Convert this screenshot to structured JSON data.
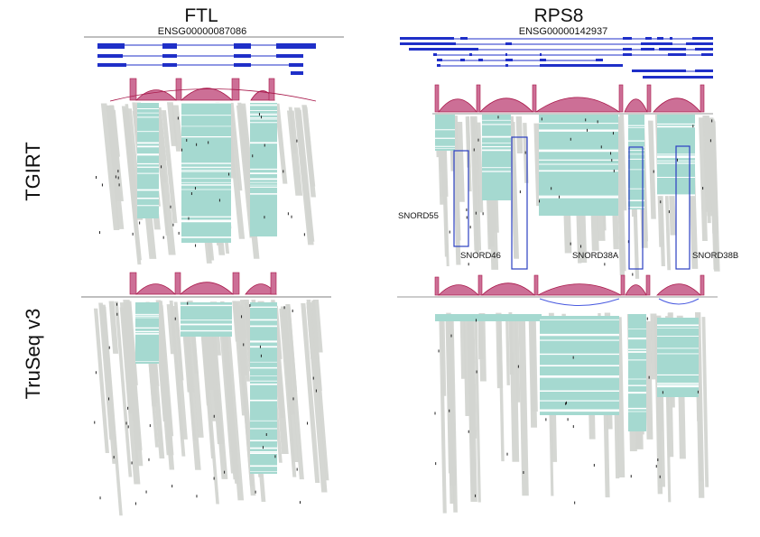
{
  "genes": [
    {
      "name": "FTL",
      "id": "ENSG00000087086"
    },
    {
      "name": "RPS8",
      "id": "ENSG00000142937"
    }
  ],
  "rows": [
    "TGIRT",
    "TruSeq v3"
  ],
  "snornas": [
    "SNORD55",
    "SNORD46",
    "SNORD38A",
    "SNORD38B"
  ],
  "colors": {
    "transcript": "#1f2fc8",
    "sashimi_arc": "#a8184a",
    "sashimi_fill": "#cc6f96",
    "exon_reads": "#a5d9d0",
    "intron_reads": "#d3d5d1",
    "snorna_box": "#2b3fc2"
  }
}
